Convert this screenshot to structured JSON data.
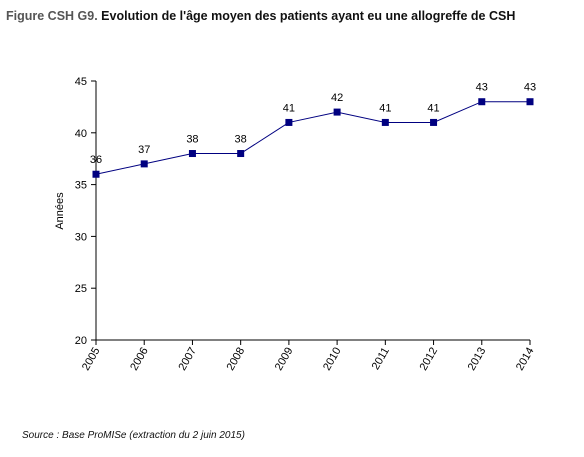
{
  "figure": {
    "prefix": "Figure CSH G9.",
    "title": "Evolution de l'âge moyen des patients ayant eu une allogreffe de CSH",
    "source": "Source : Base ProMISe (extraction du 2 juin 2015)"
  },
  "colors": {
    "series": "#000080",
    "axis": "#000000",
    "prefix": "#555555"
  },
  "chart_data": {
    "type": "line",
    "title": "Evolution de l'âge moyen des patients ayant eu une allogreffe de CSH",
    "xlabel": "",
    "ylabel": "Années",
    "ylim": [
      20,
      45
    ],
    "yticks": [
      20,
      25,
      30,
      35,
      40,
      45
    ],
    "grid": false,
    "legend": "none",
    "categories": [
      "2005",
      "2006",
      "2007",
      "2008",
      "2009",
      "2010",
      "2011",
      "2012",
      "2013",
      "2014"
    ],
    "series": [
      {
        "values": [
          36,
          37,
          38,
          38,
          41,
          42,
          41,
          41,
          43,
          43
        ],
        "labels": [
          "36",
          "37",
          "38",
          "38",
          "41",
          "42",
          "41",
          "41",
          "43",
          "43"
        ]
      }
    ]
  }
}
